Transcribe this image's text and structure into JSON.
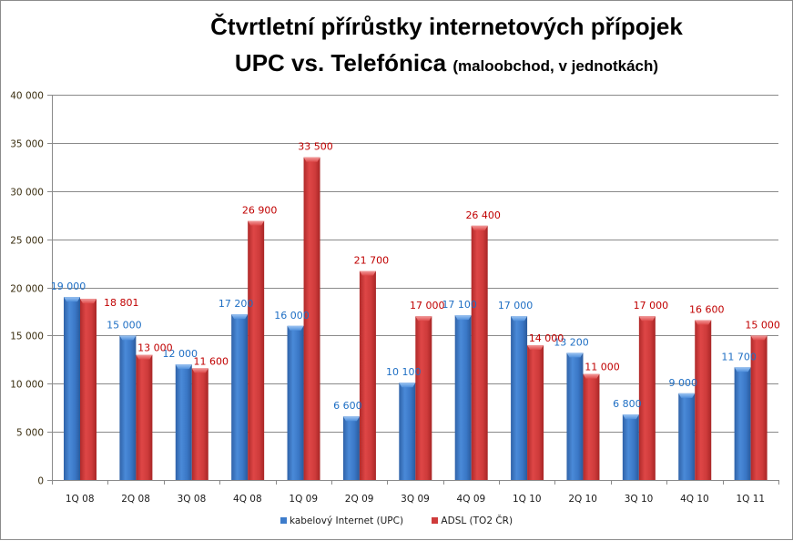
{
  "title_line1": "Čtvrtletní přírůstky  internetových přípojek",
  "title_line2_main": "UPC vs. Telefónica",
  "title_line2_sub": "(maloobchod, v jednotkách)",
  "chart_data": {
    "type": "bar",
    "title": "Čtvrtletní přírůstky  internetových přípojek UPC vs. Telefónica (maloobchod, v jednotkách)",
    "xlabel": "",
    "ylabel": "",
    "ylim": [
      0,
      40000
    ],
    "y_ticks": [
      0,
      5000,
      10000,
      15000,
      20000,
      25000,
      30000,
      35000,
      40000
    ],
    "y_tick_labels": [
      "0",
      "5 000",
      "10 000",
      "15 000",
      "20 000",
      "25 000",
      "30 000",
      "35 000",
      "40 000"
    ],
    "grid": true,
    "legend_position": "bottom",
    "categories": [
      "1Q 08",
      "2Q 08",
      "3Q 08",
      "4Q 08",
      "1Q 09",
      "2Q 09",
      "3Q 09",
      "4Q 09",
      "1Q 10",
      "2Q 10",
      "3Q 10",
      "4Q 10",
      "1Q 11"
    ],
    "series": [
      {
        "name": "kabelový Internet (UPC)",
        "color": "#3d7ccb",
        "label_color": "#1f6fc4",
        "values": [
          19000,
          15000,
          12000,
          17200,
          16000,
          6600,
          10100,
          17100,
          17000,
          13200,
          6800,
          9000,
          11700
        ],
        "labels": [
          "19 000",
          "15 000",
          "12 000",
          "17 200",
          "16 000",
          "6 600",
          "10 100",
          "17 100",
          "17 000",
          "13 200",
          "6 800",
          "9 000",
          "11 700"
        ]
      },
      {
        "name": "ADSL (TO2 ČR)",
        "color": "#cf3b3b",
        "label_color": "#c00000",
        "values": [
          18801,
          13000,
          11600,
          26900,
          33500,
          21700,
          17000,
          26400,
          14000,
          11000,
          17000,
          16600,
          15000
        ],
        "labels": [
          "18 801",
          "13 000",
          "11 600",
          "26 900",
          "33 500",
          "21 700",
          "17 000",
          "26 400",
          "14 000",
          "11 000",
          "17 000",
          "16 600",
          "15 000"
        ]
      }
    ]
  }
}
